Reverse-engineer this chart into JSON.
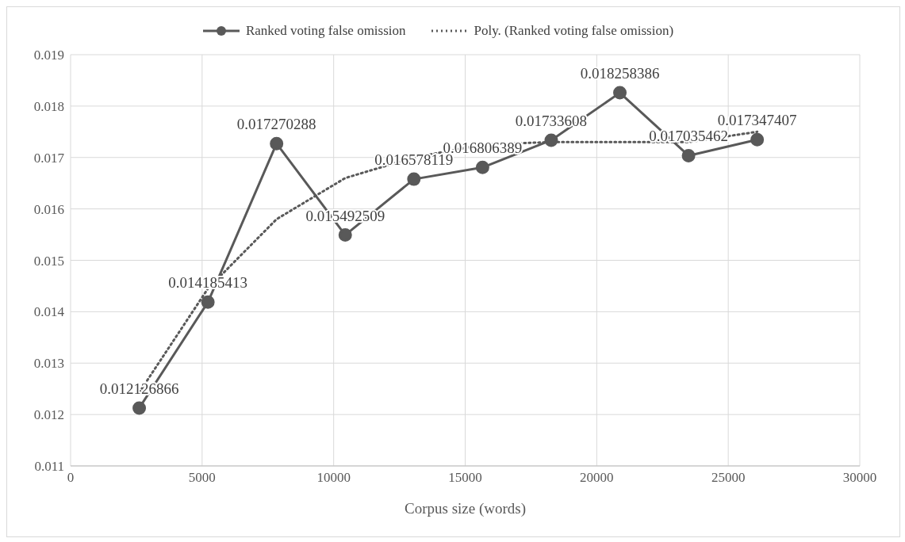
{
  "chart_data": {
    "type": "line",
    "xlabel": "Corpus size (words)",
    "x": [
      2610,
      5220,
      7830,
      10440,
      13050,
      15660,
      18270,
      20880,
      23490,
      26100
    ],
    "series": [
      {
        "name": "Ranked voting false omission",
        "color": "#595959",
        "marker": "circle",
        "line_style": "solid",
        "values": [
          0.012126866,
          0.014185413,
          0.017270288,
          0.015492509,
          0.016578119,
          0.016806389,
          0.01733608,
          0.018258386,
          0.017035462,
          0.017347407
        ],
        "value_labels": [
          "0.012126866",
          "0.014185413",
          "0.017270288",
          "0.015492509",
          "0.016578119",
          "0.016806389",
          "0.01733608",
          "0.018258386",
          "0.017035462",
          "0.017347407"
        ]
      },
      {
        "name": "Poly. (Ranked voting false omission)",
        "type": "line",
        "color": "#595959",
        "marker": "none",
        "line_style": "dotted",
        "values": [
          0.01243,
          0.01445,
          0.0158,
          0.0166,
          0.017,
          0.01725,
          0.0173,
          0.0173,
          0.0173,
          0.0175
        ]
      }
    ],
    "xlim": [
      0,
      30000
    ],
    "xticks": [
      0,
      5000,
      10000,
      15000,
      20000,
      25000,
      30000
    ],
    "ylim": [
      0.011,
      0.019
    ],
    "yticks": [
      0.011,
      0.012,
      0.013,
      0.014,
      0.015,
      0.016,
      0.017,
      0.018,
      0.019
    ],
    "grid": true,
    "legend": "top"
  }
}
